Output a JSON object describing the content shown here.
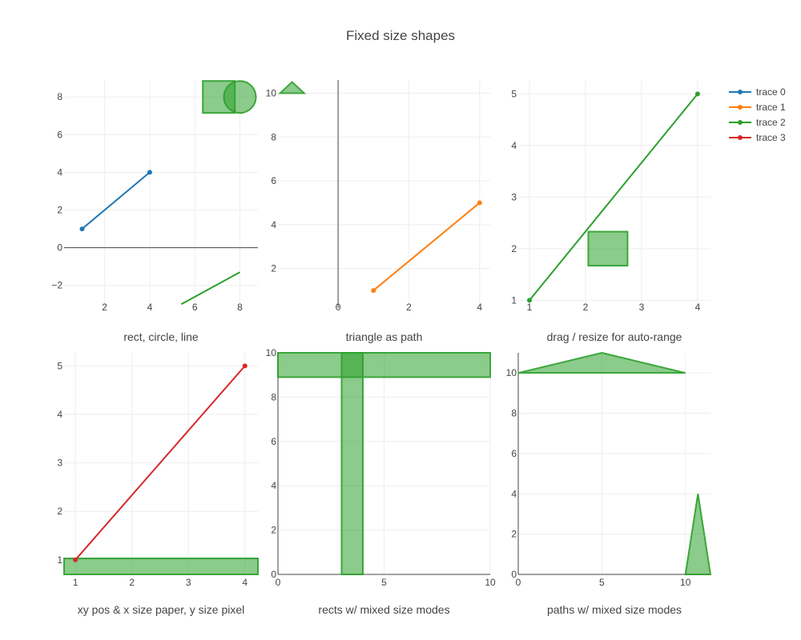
{
  "title": "Fixed size shapes",
  "chart_data": [
    {
      "type": "line",
      "subtitle": "rect, circle, line",
      "xlim": [
        0.2,
        8.8
      ],
      "ylim": [
        -3.2,
        8.9
      ],
      "xticks": [
        2,
        4,
        6,
        8
      ],
      "yticks": [
        -2,
        0,
        2,
        4,
        6,
        8
      ],
      "ytick_labels": [
        "−2",
        "0",
        "2",
        "4",
        "6",
        "8"
      ],
      "zero_y": true,
      "zero_x": false,
      "series": [
        {
          "name": "trace 0",
          "color": "#1f77b4",
          "x": [
            1,
            4
          ],
          "y": [
            1,
            4
          ]
        }
      ],
      "shapes": [
        {
          "kind": "rect",
          "desc": "fixed size rect anchored near x=6, y=8"
        },
        {
          "kind": "circle",
          "desc": "fixed size circle anchored near x=8, y=8"
        },
        {
          "kind": "line",
          "x": [
            5.4,
            8
          ],
          "y": [
            -3,
            -1.3
          ]
        }
      ]
    },
    {
      "type": "line",
      "subtitle": "triangle as path",
      "xlim": [
        -1.7,
        4.3
      ],
      "ylim": [
        0.2,
        10.6
      ],
      "xticks": [
        0,
        2,
        4
      ],
      "yticks": [
        2,
        4,
        6,
        8,
        10
      ],
      "zero_y": false,
      "zero_x": true,
      "series": [
        {
          "name": "trace 1",
          "color": "#ff7f0e",
          "x": [
            1,
            4
          ],
          "y": [
            1,
            5
          ]
        }
      ],
      "shapes": [
        {
          "kind": "triangle-path",
          "desc": "fixed size triangle anchored at x≈-1.3, y≈10"
        }
      ]
    },
    {
      "type": "line",
      "subtitle": "drag / resize for auto-range",
      "xlim": [
        0.8,
        4.23
      ],
      "ylim": [
        0.85,
        5.27
      ],
      "xticks": [
        1,
        2,
        3,
        4
      ],
      "yticks": [
        1,
        2,
        3,
        4,
        5
      ],
      "zero_y": false,
      "zero_x": false,
      "series": [
        {
          "name": "trace 2",
          "color": "#2ca02c",
          "x": [
            1,
            4
          ],
          "y": [
            1,
            5
          ]
        }
      ],
      "shapes": [
        {
          "kind": "rect",
          "x": [
            2.05,
            2.75
          ],
          "y": [
            1.67,
            2.33
          ]
        }
      ]
    },
    {
      "type": "line",
      "subtitle": "xy pos & x size paper, y size pixel",
      "xlim": [
        0.8,
        4.23
      ],
      "ylim": [
        0.7,
        5.27
      ],
      "xticks": [
        1,
        2,
        3,
        4
      ],
      "yticks": [
        1,
        2,
        3,
        4,
        5
      ],
      "zero_y": false,
      "zero_x": false,
      "series": [
        {
          "name": "trace 3",
          "color": "#d62728",
          "x": [
            1,
            4
          ],
          "y": [
            1,
            5
          ]
        }
      ],
      "shapes": [
        {
          "kind": "rect",
          "desc": "full-width band with fixed pixel height at bottom"
        }
      ]
    },
    {
      "type": "line",
      "subtitle": "rects w/ mixed size modes",
      "xlim": [
        0,
        10
      ],
      "ylim": [
        0,
        10
      ],
      "xticks": [
        0,
        5,
        10
      ],
      "yticks": [
        0,
        2,
        4,
        6,
        8,
        10
      ],
      "zero_y": false,
      "zero_x": false,
      "axis_lines": true,
      "series": [],
      "shapes": [
        {
          "kind": "rect",
          "x": [
            3,
            4
          ],
          "y": [
            0,
            10
          ]
        },
        {
          "kind": "rect",
          "x": [
            0,
            10
          ],
          "y": [
            8.9,
            10
          ]
        }
      ]
    },
    {
      "type": "line",
      "subtitle": "paths w/ mixed size modes",
      "xlim": [
        0,
        11.5
      ],
      "ylim": [
        0,
        11
      ],
      "xticks": [
        0,
        5,
        10
      ],
      "yticks": [
        0,
        2,
        4,
        6,
        8,
        10
      ],
      "zero_y": false,
      "zero_x": false,
      "axis_lines": true,
      "series": [],
      "shapes": [
        {
          "kind": "path",
          "points": [
            [
              0,
              10
            ],
            [
              5,
              11
            ],
            [
              10,
              10
            ]
          ]
        },
        {
          "kind": "path",
          "points": [
            [
              10,
              0
            ],
            [
              10.75,
              4
            ],
            [
              11.5,
              0
            ]
          ]
        }
      ]
    }
  ],
  "legend": {
    "placement": "top-right",
    "items": [
      {
        "label": "trace 0",
        "color": "#1f77b4"
      },
      {
        "label": "trace 1",
        "color": "#ff7f0e"
      },
      {
        "label": "trace 2",
        "color": "#2ca02c"
      },
      {
        "label": "trace 3",
        "color": "#d62728"
      }
    ]
  },
  "colors": {
    "shape": "#2ca02c",
    "grid": "#eeeeee",
    "axis": "#444444"
  }
}
